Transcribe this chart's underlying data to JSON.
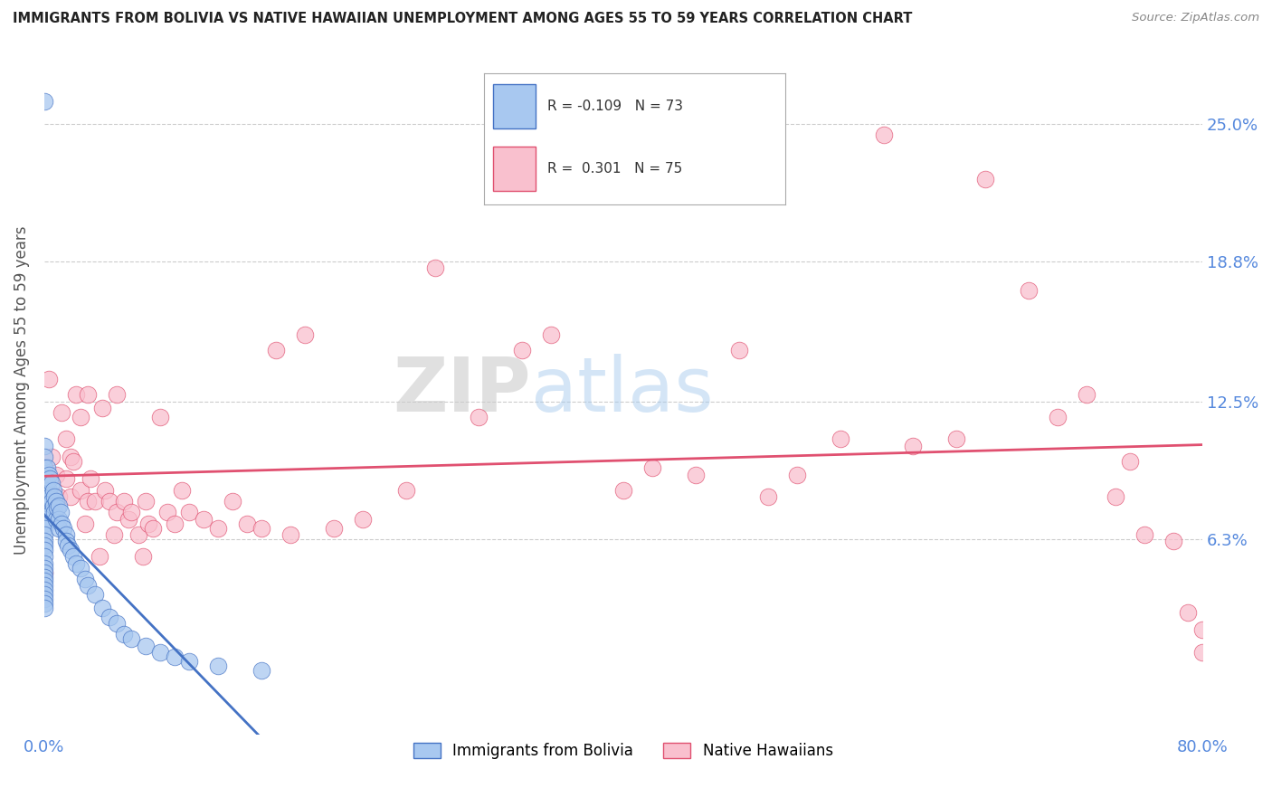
{
  "title": "IMMIGRANTS FROM BOLIVIA VS NATIVE HAWAIIAN UNEMPLOYMENT AMONG AGES 55 TO 59 YEARS CORRELATION CHART",
  "source": "Source: ZipAtlas.com",
  "ylabel": "Unemployment Among Ages 55 to 59 years",
  "ytick_labels": [
    "25.0%",
    "18.8%",
    "12.5%",
    "6.3%"
  ],
  "ytick_values": [
    0.25,
    0.188,
    0.125,
    0.063
  ],
  "xlim": [
    0.0,
    0.8
  ],
  "ylim": [
    -0.025,
    0.285
  ],
  "color_bolivia": "#A8C8F0",
  "color_hawaii": "#F9C0CE",
  "line_color_bolivia": "#4472C4",
  "line_color_hawaii": "#E05070",
  "background_color": "#FFFFFF",
  "bolivia_x": [
    0.0,
    0.0,
    0.0,
    0.0,
    0.0,
    0.0,
    0.0,
    0.0,
    0.0,
    0.0,
    0.0,
    0.0,
    0.0,
    0.0,
    0.0,
    0.0,
    0.0,
    0.0,
    0.0,
    0.0,
    0.0,
    0.0,
    0.0,
    0.0,
    0.0,
    0.0,
    0.0,
    0.0,
    0.0,
    0.0,
    0.002,
    0.002,
    0.003,
    0.003,
    0.004,
    0.004,
    0.005,
    0.005,
    0.005,
    0.006,
    0.006,
    0.007,
    0.007,
    0.008,
    0.008,
    0.009,
    0.01,
    0.01,
    0.01,
    0.011,
    0.012,
    0.013,
    0.015,
    0.015,
    0.016,
    0.018,
    0.02,
    0.022,
    0.025,
    0.028,
    0.03,
    0.035,
    0.04,
    0.045,
    0.05,
    0.055,
    0.06,
    0.07,
    0.08,
    0.09,
    0.1,
    0.12,
    0.15
  ],
  "bolivia_y": [
    0.26,
    0.105,
    0.1,
    0.095,
    0.09,
    0.088,
    0.085,
    0.082,
    0.08,
    0.078,
    0.075,
    0.072,
    0.07,
    0.068,
    0.065,
    0.062,
    0.06,
    0.058,
    0.055,
    0.052,
    0.05,
    0.048,
    0.046,
    0.044,
    0.042,
    0.04,
    0.038,
    0.036,
    0.034,
    0.032,
    0.095,
    0.088,
    0.092,
    0.085,
    0.09,
    0.082,
    0.088,
    0.08,
    0.075,
    0.085,
    0.078,
    0.082,
    0.075,
    0.08,
    0.072,
    0.077,
    0.078,
    0.072,
    0.068,
    0.075,
    0.07,
    0.068,
    0.065,
    0.062,
    0.06,
    0.058,
    0.055,
    0.052,
    0.05,
    0.045,
    0.042,
    0.038,
    0.032,
    0.028,
    0.025,
    0.02,
    0.018,
    0.015,
    0.012,
    0.01,
    0.008,
    0.006,
    0.004
  ],
  "hawaii_x": [
    0.0,
    0.003,
    0.005,
    0.008,
    0.01,
    0.012,
    0.015,
    0.015,
    0.018,
    0.018,
    0.02,
    0.022,
    0.025,
    0.025,
    0.028,
    0.03,
    0.03,
    0.032,
    0.035,
    0.038,
    0.04,
    0.042,
    0.045,
    0.048,
    0.05,
    0.05,
    0.055,
    0.058,
    0.06,
    0.065,
    0.068,
    0.07,
    0.072,
    0.075,
    0.08,
    0.085,
    0.09,
    0.095,
    0.1,
    0.11,
    0.12,
    0.13,
    0.14,
    0.15,
    0.16,
    0.17,
    0.18,
    0.2,
    0.22,
    0.25,
    0.27,
    0.3,
    0.33,
    0.35,
    0.4,
    0.42,
    0.45,
    0.48,
    0.5,
    0.52,
    0.55,
    0.58,
    0.6,
    0.63,
    0.65,
    0.68,
    0.7,
    0.72,
    0.74,
    0.75,
    0.76,
    0.78,
    0.79,
    0.8,
    0.8
  ],
  "hawaii_y": [
    0.048,
    0.135,
    0.1,
    0.092,
    0.082,
    0.12,
    0.108,
    0.09,
    0.1,
    0.082,
    0.098,
    0.128,
    0.118,
    0.085,
    0.07,
    0.128,
    0.08,
    0.09,
    0.08,
    0.055,
    0.122,
    0.085,
    0.08,
    0.065,
    0.128,
    0.075,
    0.08,
    0.072,
    0.075,
    0.065,
    0.055,
    0.08,
    0.07,
    0.068,
    0.118,
    0.075,
    0.07,
    0.085,
    0.075,
    0.072,
    0.068,
    0.08,
    0.07,
    0.068,
    0.148,
    0.065,
    0.155,
    0.068,
    0.072,
    0.085,
    0.185,
    0.118,
    0.148,
    0.155,
    0.085,
    0.095,
    0.092,
    0.148,
    0.082,
    0.092,
    0.108,
    0.245,
    0.105,
    0.108,
    0.225,
    0.175,
    0.118,
    0.128,
    0.082,
    0.098,
    0.065,
    0.062,
    0.03,
    0.022,
    0.012
  ]
}
